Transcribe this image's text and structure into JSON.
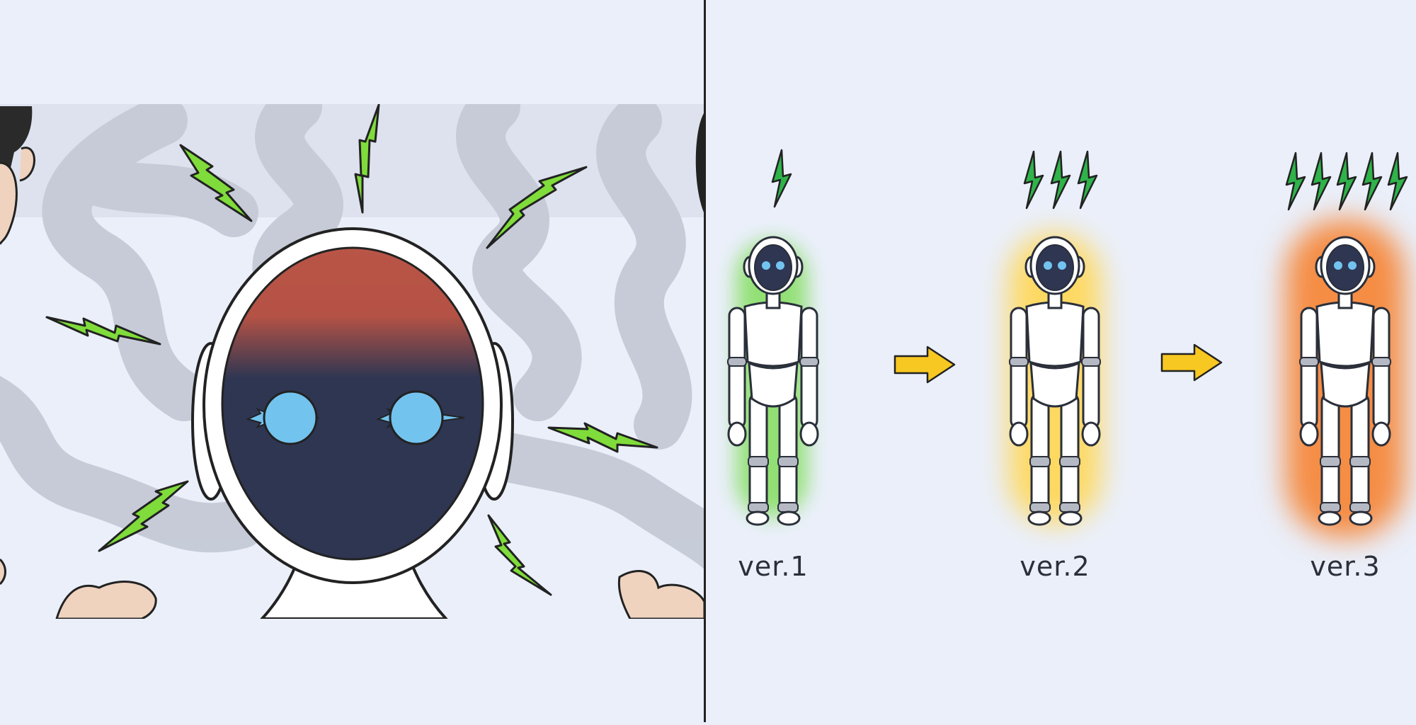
{
  "colors": {
    "background": "#eaeffa",
    "smoke": "#c5cad6",
    "bolt": "#7fdc3a",
    "bolt_dark": "#2fb34a",
    "head_top": "#b95547",
    "head_face": "#2e3652",
    "eye": "#73c3ef",
    "glow_ver1": "#8ee06e",
    "glow_ver2": "#ffd85a",
    "glow_ver3": "#f58d45",
    "arrow": "#f7c722",
    "skin": "#efd3bf",
    "divider": "#222222"
  },
  "icons": {
    "bolt": "lightning-bolt-icon",
    "arrow": "right-arrow-icon"
  },
  "versions": [
    {
      "label": "ver.1",
      "bolts": 1,
      "glow": "#8ee06e"
    },
    {
      "label": "ver.2",
      "bolts": 3,
      "glow": "#ffd85a"
    },
    {
      "label": "ver.3",
      "bolts": 5,
      "glow": "#f58d45"
    }
  ]
}
